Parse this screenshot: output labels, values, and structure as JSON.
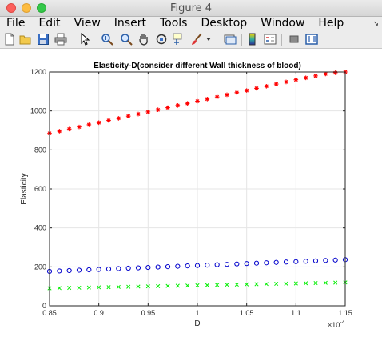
{
  "window": {
    "title": "Figure 4"
  },
  "menubar": {
    "items": [
      "File",
      "Edit",
      "View",
      "Insert",
      "Tools",
      "Desktop",
      "Window",
      "Help"
    ]
  },
  "toolbar": {
    "icons": [
      "new-figure-icon",
      "open-file-icon",
      "save-icon",
      "print-icon",
      "pointer-icon",
      "zoom-in-icon",
      "zoom-out-icon",
      "pan-icon",
      "rotate-3d-icon",
      "data-cursor-icon",
      "brush-icon",
      "brush-dropdown-icon",
      "link-plot-icon",
      "colorbar-icon",
      "legend-icon",
      "hide-plot-tools-icon",
      "show-plot-tools-icon"
    ]
  },
  "chart_data": {
    "type": "scatter",
    "title": "Elasticity-D(consider different Wall thickness of blood)",
    "xlabel": "D",
    "ylabel": "Elasticity",
    "x_exponent_label": "×10",
    "x_exponent_power": "-4",
    "xlim": [
      0.85,
      1.15
    ],
    "ylim": [
      0,
      1200
    ],
    "grid": true,
    "xticks": [
      "0.85",
      "0.9",
      "0.95",
      "1",
      "1.05",
      "1.1",
      "1.15"
    ],
    "yticks": [
      "0",
      "200",
      "400",
      "600",
      "800",
      "1000",
      "1200"
    ],
    "x": [
      0.85,
      0.86,
      0.87,
      0.88,
      0.89,
      0.9,
      0.91,
      0.92,
      0.93,
      0.94,
      0.95,
      0.96,
      0.97,
      0.98,
      0.99,
      1.0,
      1.01,
      1.02,
      1.03,
      1.04,
      1.05,
      1.06,
      1.07,
      1.08,
      1.09,
      1.1,
      1.11,
      1.12,
      1.13,
      1.14,
      1.15
    ],
    "series": [
      {
        "marker": "asterisk",
        "color": "#ff0000",
        "values": [
          885,
          896,
          907,
          918,
          929,
          940,
          951,
          962,
          973,
          984,
          995,
          1006,
          1017,
          1028,
          1039,
          1050,
          1061,
          1072,
          1083,
          1094,
          1105,
          1116,
          1127,
          1138,
          1149,
          1160,
          1170,
          1180,
          1190,
          1196,
          1200
        ]
      },
      {
        "marker": "circle",
        "color": "#0000cc",
        "values": [
          177,
          179,
          181,
          183,
          185,
          187,
          189,
          191,
          193,
          195,
          197,
          199,
          201,
          203,
          205,
          207,
          209,
          211,
          213,
          215,
          217,
          219,
          221,
          223,
          225,
          227,
          229,
          231,
          233,
          235,
          237
        ]
      },
      {
        "marker": "cross",
        "color": "#00ee00",
        "values": [
          90,
          91,
          92,
          93,
          94,
          95,
          96,
          97,
          98,
          99,
          100,
          101,
          102,
          103,
          104,
          105,
          106,
          107,
          108,
          109,
          110,
          111,
          112,
          113,
          114,
          115,
          116,
          117,
          118,
          119,
          120
        ]
      }
    ]
  }
}
